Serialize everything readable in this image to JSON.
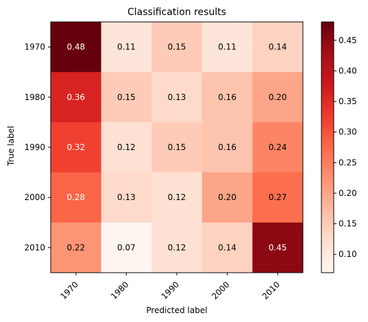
{
  "chart_data": {
    "type": "heatmap",
    "title": "Classification results",
    "xlabel": "Predicted label",
    "ylabel": "True label",
    "x_categories": [
      "1970",
      "1980",
      "1990",
      "2000",
      "2010"
    ],
    "y_categories": [
      "1970",
      "1980",
      "1990",
      "2000",
      "2010"
    ],
    "values": [
      [
        0.48,
        0.11,
        0.15,
        0.11,
        0.14
      ],
      [
        0.36,
        0.15,
        0.13,
        0.16,
        0.2
      ],
      [
        0.32,
        0.12,
        0.15,
        0.16,
        0.24
      ],
      [
        0.28,
        0.13,
        0.12,
        0.2,
        0.27
      ],
      [
        0.22,
        0.07,
        0.12,
        0.14,
        0.45
      ]
    ],
    "cell_labels": [
      [
        "0.48",
        "0.11",
        "0.15",
        "0.11",
        "0.14"
      ],
      [
        "0.36",
        "0.15",
        "0.13",
        "0.16",
        "0.20"
      ],
      [
        "0.32",
        "0.12",
        "0.15",
        "0.16",
        "0.24"
      ],
      [
        "0.28",
        "0.13",
        "0.12",
        "0.20",
        "0.27"
      ],
      [
        "0.22",
        "0.07",
        "0.12",
        "0.14",
        "0.45"
      ]
    ],
    "colormap": "Reds",
    "color_range": [
      0.07,
      0.48
    ],
    "colorbar_ticks": [
      "0.10",
      "0.15",
      "0.20",
      "0.25",
      "0.30",
      "0.35",
      "0.40",
      "0.45"
    ],
    "x_tick_rotation": 45,
    "text_color_dark": "#000000",
    "text_color_light": "#ffffff"
  }
}
